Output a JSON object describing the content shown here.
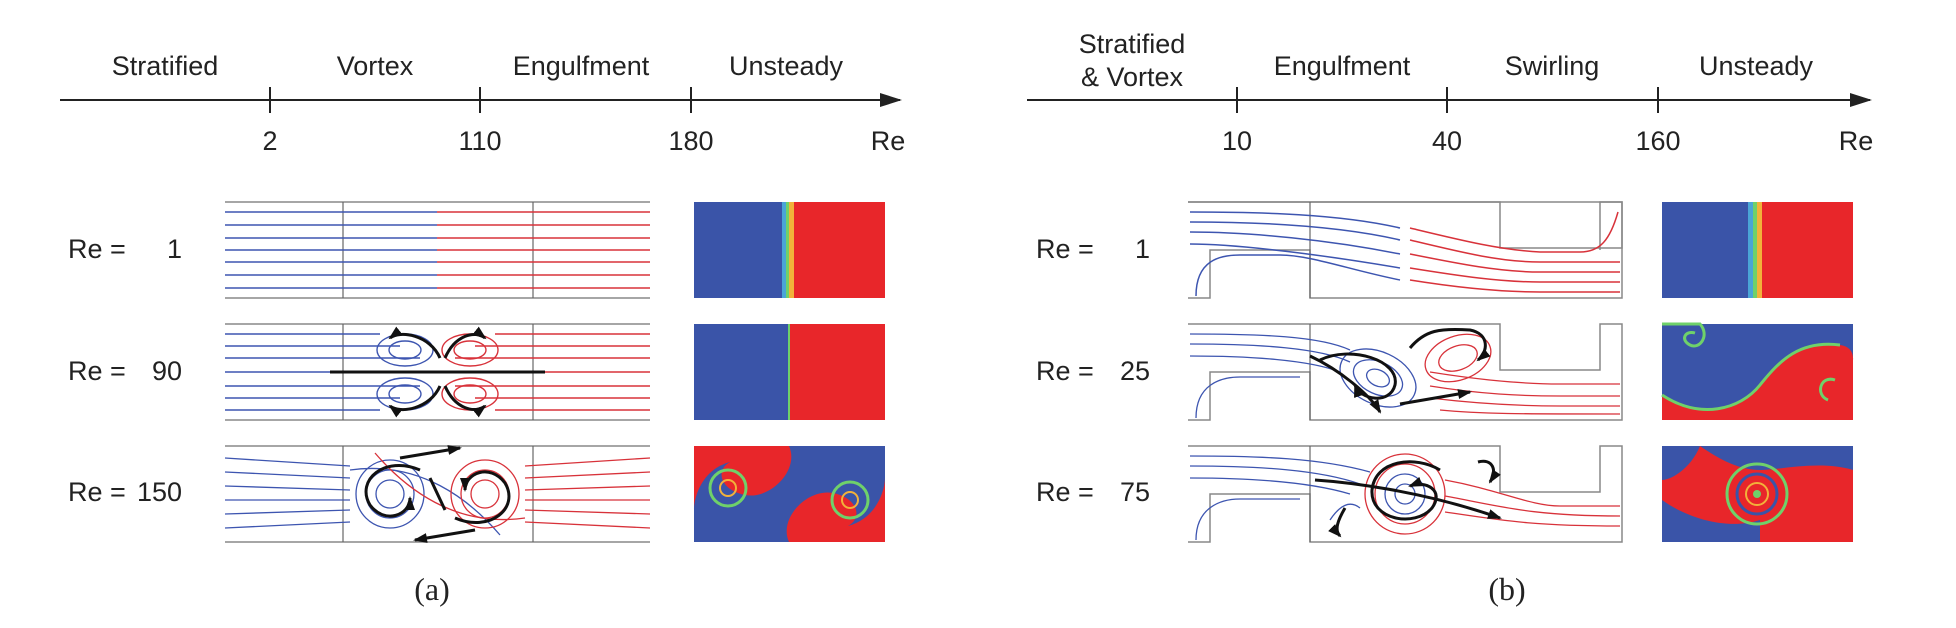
{
  "panel_a": {
    "caption": "(a)",
    "axis_label": "Re",
    "regimes": [
      "Stratified",
      "Vortex",
      "Engulfment",
      "Unsteady"
    ],
    "ticks": [
      "2",
      "110",
      "180"
    ],
    "rows": [
      {
        "label": "Re =",
        "value": "1"
      },
      {
        "label": "Re =",
        "value": "90"
      },
      {
        "label": "Re =",
        "value": "150"
      }
    ]
  },
  "panel_b": {
    "caption": "(b)",
    "axis_label": "Re",
    "regimes": [
      "Stratified",
      "& Vortex",
      "Engulfment",
      "Swirling",
      "Unsteady"
    ],
    "ticks": [
      "10",
      "40",
      "160"
    ],
    "rows": [
      {
        "label": "Re =",
        "value": "1"
      },
      {
        "label": "Re =",
        "value": "25"
      },
      {
        "label": "Re =",
        "value": "75"
      }
    ]
  },
  "colors": {
    "fluid_a": "#3a54a8",
    "fluid_b": "#e8262a",
    "interface": "#6fd16a",
    "streamline_blue": "#3d55b0",
    "streamline_red": "#d8323a",
    "arrow": "#111111"
  }
}
